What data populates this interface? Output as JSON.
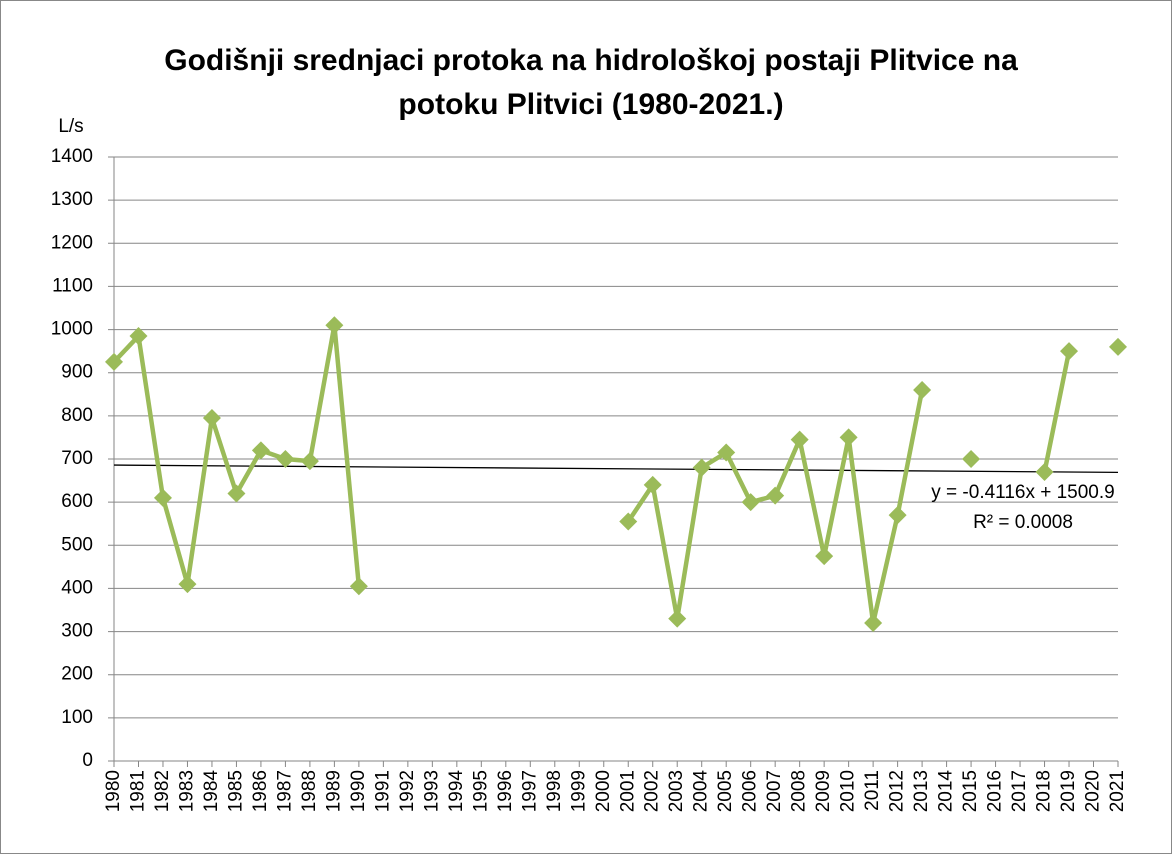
{
  "chart_data": {
    "type": "line",
    "title": "Godišnji srednjaci protoka na hidrološkoj postaji Plitvice na potoku Plitvici (1980-2021.)",
    "y_label": "L/s",
    "x": [
      1980,
      1981,
      1982,
      1983,
      1984,
      1985,
      1986,
      1987,
      1988,
      1989,
      1990,
      1991,
      1992,
      1993,
      1994,
      1995,
      1996,
      1997,
      1998,
      1999,
      2000,
      2001,
      2002,
      2003,
      2004,
      2005,
      2006,
      2007,
      2008,
      2009,
      2010,
      2011,
      2012,
      2013,
      2014,
      2015,
      2016,
      2017,
      2018,
      2019,
      2020,
      2021
    ],
    "values": [
      925,
      985,
      610,
      410,
      795,
      620,
      720,
      700,
      695,
      1010,
      405,
      null,
      null,
      null,
      null,
      null,
      null,
      null,
      null,
      null,
      null,
      555,
      640,
      330,
      680,
      715,
      600,
      615,
      745,
      475,
      750,
      320,
      570,
      860,
      null,
      700,
      null,
      null,
      670,
      950,
      null,
      960
    ],
    "color": "#9bbb59",
    "xlim": [
      1980,
      2021
    ],
    "ylim": [
      0,
      1400
    ],
    "yticks": [
      0,
      100,
      200,
      300,
      400,
      500,
      600,
      700,
      800,
      900,
      1000,
      1100,
      1200,
      1300,
      1400
    ],
    "grid": true,
    "trendline": {
      "equation": "y = -0.4116x + 1500.9",
      "slope": -0.4116,
      "intercept": 1500.9,
      "r_squared": "R² = 0.0008",
      "color": "#000000"
    }
  }
}
